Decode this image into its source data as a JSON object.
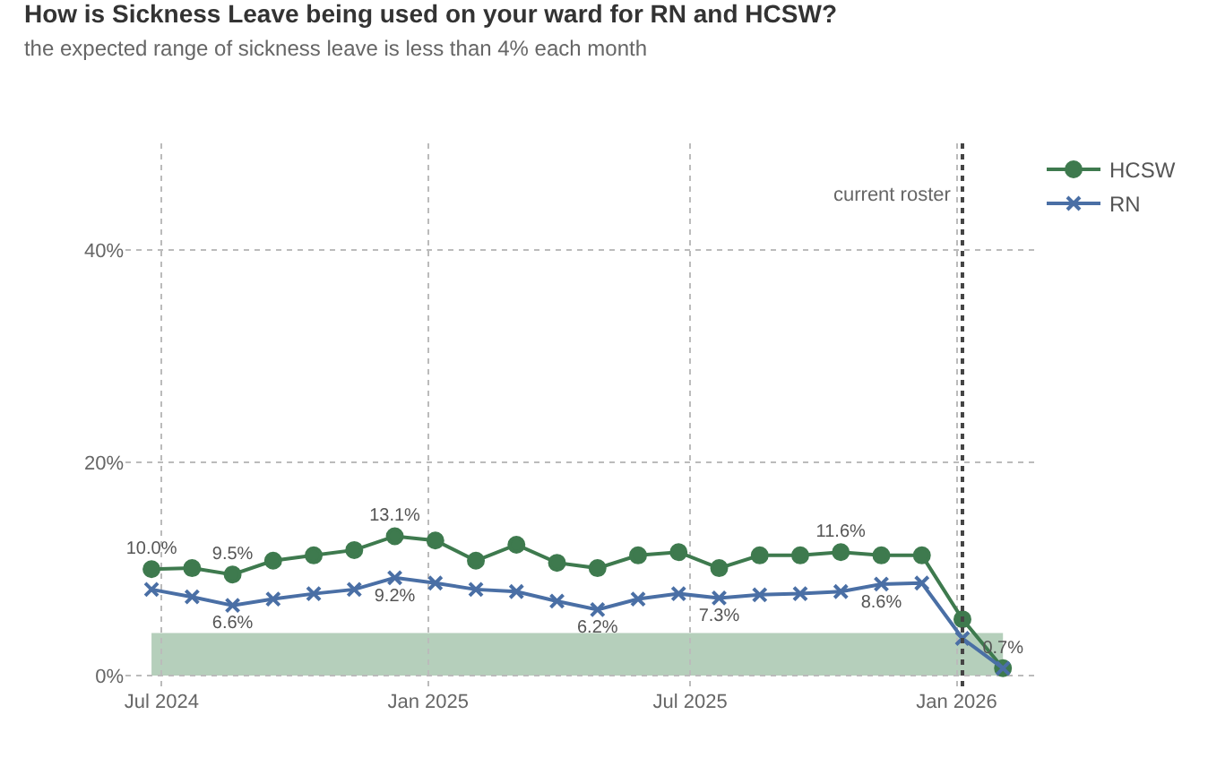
{
  "chart_data": {
    "type": "line",
    "title": "How is Sickness Leave being used on your ward for RN and HCSW?",
    "subtitle": "the expected range of sickness leave is less than 4% each month",
    "x": [
      "2024-06-24",
      "2024-07-22",
      "2024-08-19",
      "2024-09-16",
      "2024-10-14",
      "2024-11-11",
      "2024-12-09",
      "2025-01-06",
      "2025-02-03",
      "2025-03-03",
      "2025-03-31",
      "2025-04-28",
      "2025-05-26",
      "2025-06-23",
      "2025-07-21",
      "2025-08-18",
      "2025-09-15",
      "2025-10-13",
      "2025-11-10",
      "2025-12-08",
      "2026-01-05",
      "2026-02-02"
    ],
    "series": [
      {
        "name": "HCSW",
        "color": "#3e7a4e",
        "marker": "circle",
        "values": [
          10.0,
          10.1,
          9.5,
          10.8,
          11.3,
          11.8,
          13.1,
          12.7,
          10.8,
          12.3,
          10.6,
          10.1,
          11.3,
          11.6,
          10.1,
          11.3,
          11.3,
          11.6,
          11.3,
          11.3,
          5.3,
          0.7
        ],
        "value_labels": [
          "10.0%",
          null,
          "9.5%",
          null,
          null,
          null,
          "13.1%",
          null,
          null,
          null,
          null,
          null,
          null,
          null,
          null,
          null,
          null,
          "11.6%",
          null,
          null,
          null,
          "0.7%"
        ]
      },
      {
        "name": "RN",
        "color": "#4a6fa5",
        "marker": "cross",
        "values": [
          8.1,
          7.4,
          6.6,
          7.2,
          7.7,
          8.1,
          9.2,
          8.7,
          8.1,
          7.9,
          7.0,
          6.2,
          7.2,
          7.7,
          7.3,
          7.6,
          7.7,
          7.9,
          8.6,
          8.7,
          3.5,
          0.7
        ],
        "value_labels": [
          null,
          null,
          "6.6%",
          null,
          null,
          null,
          "9.2%",
          null,
          null,
          null,
          null,
          "6.2%",
          null,
          null,
          "7.3%",
          null,
          null,
          null,
          "8.6%",
          null,
          null,
          null
        ]
      }
    ],
    "xlim": [
      "2024-06-06",
      "2026-02-26"
    ],
    "xticks": [
      {
        "value": "2024-07-01",
        "label": "Jul 2024"
      },
      {
        "value": "2025-01-01",
        "label": "Jan 2025"
      },
      {
        "value": "2025-07-01",
        "label": "Jul 2025"
      },
      {
        "value": "2026-01-01",
        "label": "Jan 2026"
      }
    ],
    "ylim": [
      -1,
      50
    ],
    "yticks": [
      {
        "value": 0,
        "label": "0%"
      },
      {
        "value": 20,
        "label": "20%"
      },
      {
        "value": 40,
        "label": "40%"
      }
    ],
    "ref_lines": [
      {
        "axis": "x",
        "value": "2026-01-05",
        "label": "current roster",
        "color": "#444444",
        "line_style": "dotted"
      }
    ],
    "bands": [
      {
        "axis": "y",
        "from": 0,
        "to": 4,
        "color": "#b5cfbb"
      }
    ],
    "grid": true,
    "legend": "top right",
    "line_style": "solid"
  }
}
